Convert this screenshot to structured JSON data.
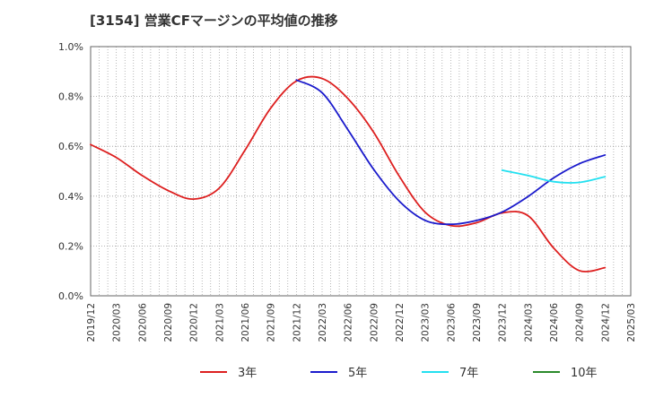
{
  "chart_data": {
    "type": "line",
    "title": "[3154]  営業CFマージンの平均値の推移",
    "xlabel": "",
    "ylabel": "",
    "x_ticks": [
      "2019/12",
      "2020/03",
      "2020/06",
      "2020/09",
      "2020/12",
      "2021/03",
      "2021/06",
      "2021/09",
      "2021/12",
      "2022/03",
      "2022/06",
      "2022/09",
      "2022/12",
      "2023/03",
      "2023/06",
      "2023/09",
      "2023/12",
      "2024/03",
      "2024/06",
      "2024/09",
      "2024/12",
      "2025/03"
    ],
    "y_ticks": [
      "0.0%",
      "0.2%",
      "0.4%",
      "0.6%",
      "0.8%",
      "1.0%"
    ],
    "ylim": [
      0,
      1.0
    ],
    "grid": true,
    "legend_position": "bottom",
    "series": [
      {
        "name": "3年",
        "color": "#dd1f1f",
        "points": [
          [
            "2019/12",
            0.607
          ],
          [
            "2020/03",
            0.555
          ],
          [
            "2020/06",
            0.483
          ],
          [
            "2020/09",
            0.423
          ],
          [
            "2020/12",
            0.388
          ],
          [
            "2021/03",
            0.432
          ],
          [
            "2021/06",
            0.584
          ],
          [
            "2021/09",
            0.753
          ],
          [
            "2021/12",
            0.862
          ],
          [
            "2022/03",
            0.872
          ],
          [
            "2022/06",
            0.792
          ],
          [
            "2022/09",
            0.657
          ],
          [
            "2022/12",
            0.48
          ],
          [
            "2023/03",
            0.336
          ],
          [
            "2023/06",
            0.282
          ],
          [
            "2023/09",
            0.293
          ],
          [
            "2023/12",
            0.333
          ],
          [
            "2024/03",
            0.322
          ],
          [
            "2024/06",
            0.192
          ],
          [
            "2024/09",
            0.101
          ],
          [
            "2024/12",
            0.113
          ]
        ]
      },
      {
        "name": "5年",
        "color": "#1a1acc",
        "points": [
          [
            "2021/12",
            0.866
          ],
          [
            "2022/03",
            0.815
          ],
          [
            "2022/06",
            0.667
          ],
          [
            "2022/09",
            0.508
          ],
          [
            "2022/12",
            0.38
          ],
          [
            "2023/03",
            0.303
          ],
          [
            "2023/06",
            0.287
          ],
          [
            "2023/09",
            0.302
          ],
          [
            "2023/12",
            0.336
          ],
          [
            "2024/03",
            0.398
          ],
          [
            "2024/06",
            0.473
          ],
          [
            "2024/09",
            0.53
          ],
          [
            "2024/12",
            0.565
          ]
        ]
      },
      {
        "name": "7年",
        "color": "#22e0f0",
        "points": [
          [
            "2023/12",
            0.504
          ],
          [
            "2024/03",
            0.483
          ],
          [
            "2024/06",
            0.458
          ],
          [
            "2024/09",
            0.455
          ],
          [
            "2024/12",
            0.478
          ]
        ]
      },
      {
        "name": "10年",
        "color": "#2a8a2a",
        "points": []
      }
    ]
  }
}
